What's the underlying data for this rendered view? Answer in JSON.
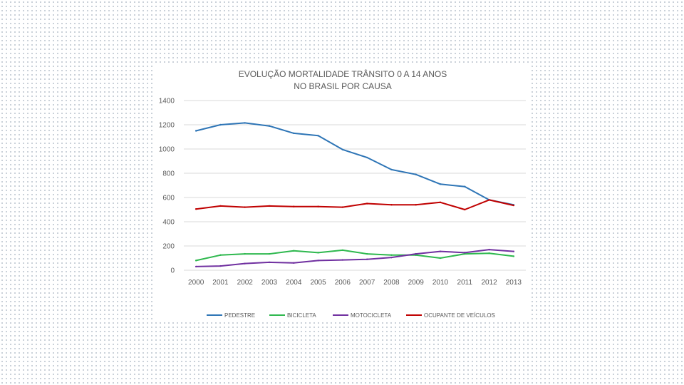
{
  "chart_data": {
    "type": "line",
    "title_lines": [
      "EVOLUÇÃO MORTALIDADE TRÂNSITO 0 A 14 ANOS",
      "NO BRASIL POR CAUSA"
    ],
    "xlabel": "",
    "ylabel": "",
    "ylim": [
      0,
      1400
    ],
    "yticks": [
      0,
      200,
      400,
      600,
      800,
      1000,
      1200,
      1400
    ],
    "grid": true,
    "legend_position": "bottom",
    "categories": [
      "2000",
      "2001",
      "2002",
      "2003",
      "2004",
      "2005",
      "2006",
      "2007",
      "2008",
      "2009",
      "2010",
      "2011",
      "2012",
      "2013"
    ],
    "series": [
      {
        "name": "PEDESTRE",
        "color": "#2e75b6",
        "values": [
          1150,
          1200,
          1215,
          1190,
          1130,
          1110,
          995,
          930,
          830,
          790,
          710,
          690,
          580,
          540
        ]
      },
      {
        "name": "BICICLETA",
        "color": "#2eb84e",
        "values": [
          80,
          125,
          135,
          135,
          160,
          145,
          165,
          135,
          125,
          125,
          100,
          135,
          140,
          115
        ]
      },
      {
        "name": "MOTOCICLETA",
        "color": "#7030a0",
        "values": [
          30,
          35,
          55,
          65,
          60,
          80,
          85,
          90,
          105,
          135,
          155,
          145,
          170,
          155
        ]
      },
      {
        "name": "OCUPANTE DE VEÍCULOS",
        "color": "#c00000",
        "values": [
          505,
          530,
          520,
          530,
          525,
          525,
          520,
          550,
          540,
          540,
          560,
          500,
          580,
          535
        ]
      }
    ]
  }
}
